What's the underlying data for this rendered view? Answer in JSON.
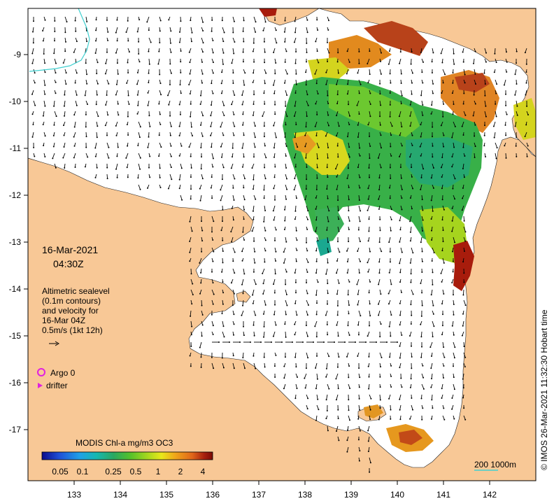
{
  "map": {
    "date": "16-Mar-2021",
    "time": "04:30Z",
    "legend_lines": [
      "Altimetric sealevel",
      "(0.1m contours)",
      "and velocity for",
      "16-Mar 04Z",
      "0.5m/s (1kt 12h)"
    ],
    "argo_label": "Argo 0",
    "drifter_label": "drifter",
    "colorbar_title": "MODIS Chl-a mg/m3 OC3",
    "colorbar_ticks": [
      "0.05",
      "0.1",
      "0.25",
      "0.5",
      "1",
      "2",
      "4"
    ],
    "colorbar_colors": [
      "#0b0b8c",
      "#1f4fd6",
      "#1fa0e8",
      "#16b8b0",
      "#2aa860",
      "#56c22a",
      "#a8d81e",
      "#e8e81a",
      "#f0a61a",
      "#e0661a",
      "#a8200e",
      "#7a0a06"
    ],
    "scale_label": "200  1000m",
    "credit": "© IMOS 26-Mar-2021 11:32:30 Hobart time",
    "x_ticks": [
      "133",
      "134",
      "135",
      "136",
      "137",
      "138",
      "139",
      "140",
      "141",
      "142"
    ],
    "y_ticks": [
      "-9",
      "-10",
      "-11",
      "-12",
      "-13",
      "-14",
      "-15",
      "-16",
      "-17"
    ],
    "colors": {
      "land": "#f8c896",
      "ocean": "#ffffff",
      "argo": "#e020e0",
      "contour_line": "#40d0d0"
    }
  }
}
